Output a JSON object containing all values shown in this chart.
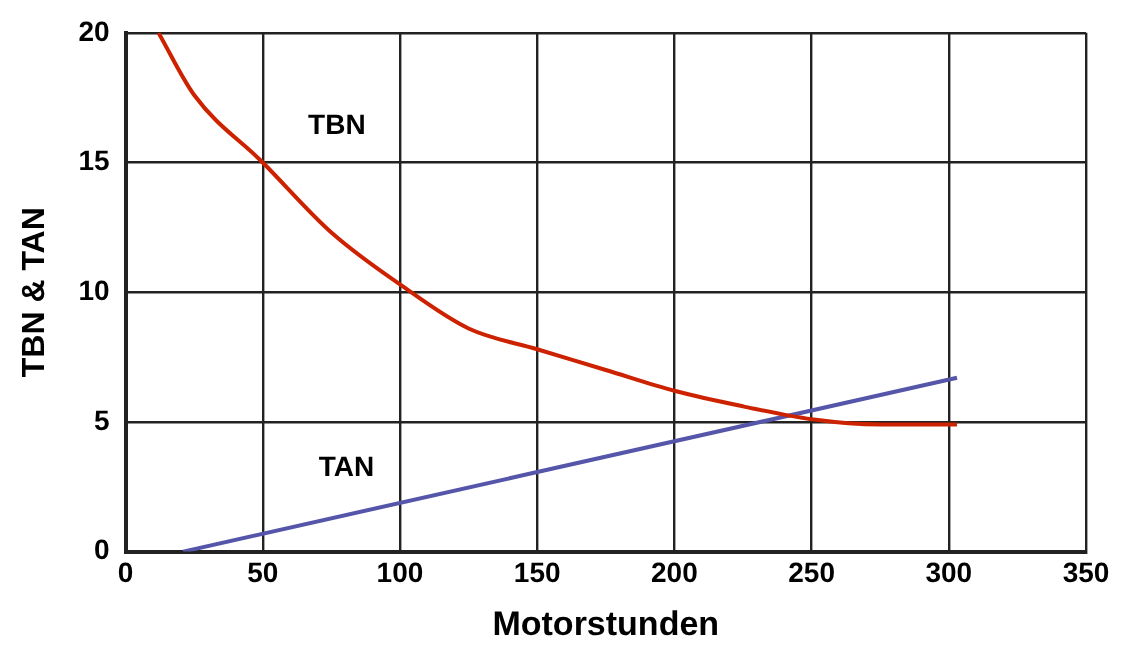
{
  "chart_data": {
    "type": "line",
    "xlabel": "Motorstunden",
    "ylabel": "TBN & TAN",
    "xlim": [
      0,
      350
    ],
    "xticks": [
      0,
      50,
      100,
      150,
      200,
      250,
      300,
      350
    ],
    "ylim": [
      0,
      20
    ],
    "yticks": [
      0,
      5,
      10,
      15,
      20
    ],
    "grid": true,
    "legend": false,
    "marker": "none",
    "line_style": "solid",
    "series": [
      {
        "name": "TBN",
        "color": "#cc2200",
        "x": [
          12,
          25,
          50,
          75,
          100,
          125,
          150,
          175,
          200,
          225,
          250,
          275,
          303
        ],
        "values": [
          20,
          17.6,
          15,
          12.3,
          10.3,
          8.6,
          7.8,
          7,
          6.2,
          5.6,
          5.1,
          4.9,
          4.9
        ]
      },
      {
        "name": "TAN",
        "color": "#5555aa",
        "x": [
          21,
          303
        ],
        "values": [
          0,
          6.7
        ]
      }
    ]
  }
}
